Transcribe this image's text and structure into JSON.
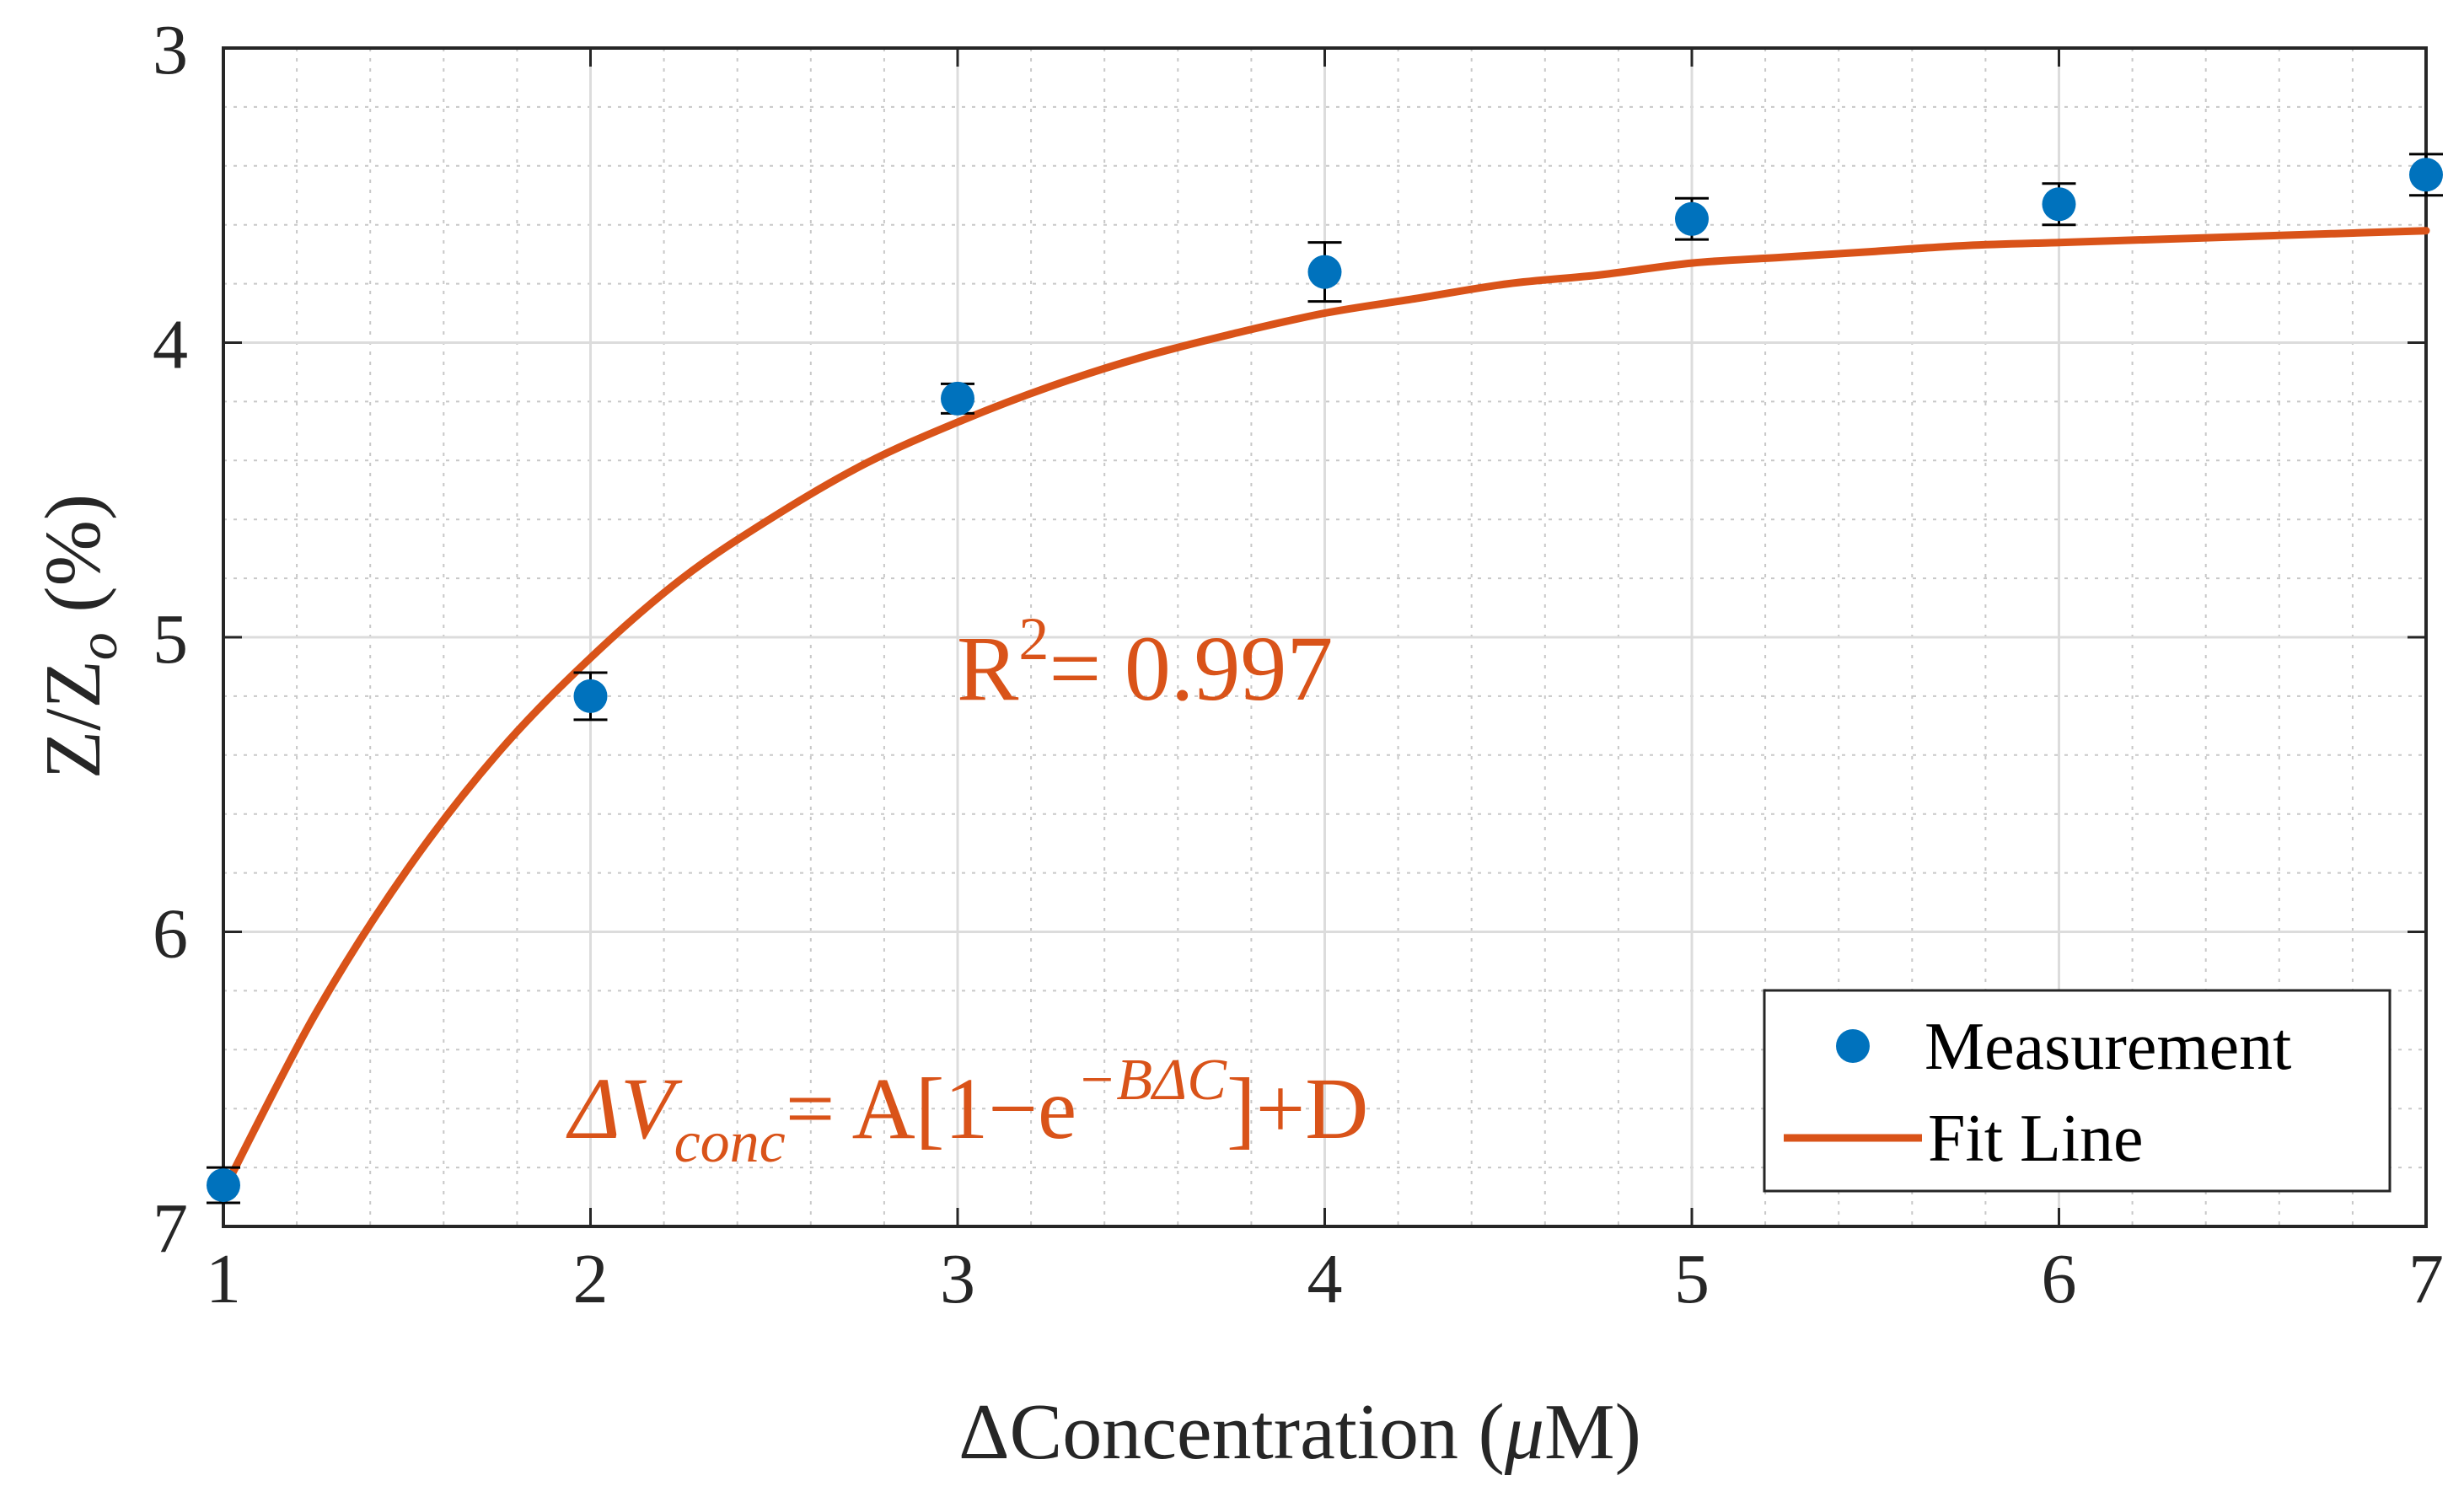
{
  "chart_data": {
    "type": "scatter",
    "title": "",
    "xlabel_prefix": "Δ",
    "xlabel_main": "Concentration (",
    "xlabel_mu": "μ",
    "xlabel_end": "M)",
    "ylabel_main": "Z/Z",
    "ylabel_sub": "o",
    "ylabel_end": " (%)",
    "xlim": [
      1,
      7
    ],
    "ylim": [
      3,
      7
    ],
    "y_reversed": true,
    "grid": true,
    "minor_grid": true,
    "xticks": [
      1,
      2,
      3,
      4,
      5,
      6,
      7
    ],
    "yticks": [
      3,
      4,
      5,
      6,
      7
    ],
    "series": [
      {
        "name": "Measurement",
        "kind": "scatter_errorbar",
        "color": "#0072BD",
        "x": [
          1,
          2,
          3,
          4,
          5,
          6,
          7
        ],
        "y": [
          6.86,
          5.2,
          4.19,
          3.76,
          3.58,
          3.53,
          3.43
        ],
        "err": [
          0.06,
          0.08,
          0.05,
          0.1,
          0.07,
          0.07,
          0.07
        ]
      },
      {
        "name": "Fit Line",
        "kind": "line",
        "color": "#D95319",
        "model": "y = 3.38 + 4.02·exp(-0.83·(x-1)) ... approx",
        "x": [
          1,
          1.25,
          1.5,
          1.75,
          2,
          2.25,
          2.5,
          2.75,
          3,
          3.25,
          3.5,
          3.75,
          4,
          4.25,
          4.5,
          4.75,
          5,
          5.25,
          5.5,
          5.75,
          6,
          6.25,
          6.5,
          6.75,
          7
        ],
        "y": [
          6.88,
          6.28,
          5.79,
          5.39,
          5.07,
          4.8,
          4.59,
          4.41,
          4.27,
          4.15,
          4.05,
          3.97,
          3.9,
          3.85,
          3.8,
          3.77,
          3.73,
          3.71,
          3.69,
          3.67,
          3.66,
          3.65,
          3.64,
          3.63,
          3.62
        ]
      }
    ],
    "legend": {
      "placement": "bottom-right",
      "entries": [
        "Measurement",
        "Fit Line"
      ]
    },
    "annotations": {
      "r2_prefix": "R",
      "r2_sup": "2",
      "r2_value": "= 0.997",
      "eq_lhs": "ΔV",
      "eq_lhs_sub": "conc",
      "eq_mid": "= A[1−e",
      "eq_exp": "−BΔC",
      "eq_end": "]+D"
    }
  }
}
